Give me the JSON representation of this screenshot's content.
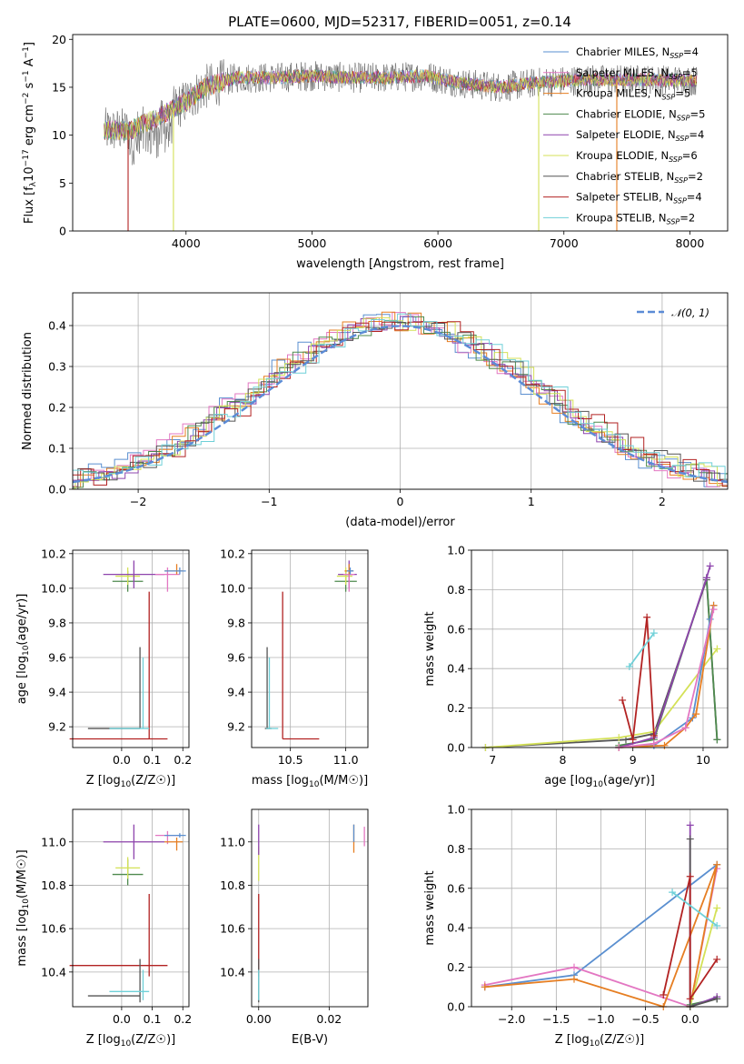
{
  "title": "PLATE=0600, MJD=52317, FIBERID=0051, z=0.14",
  "colors": {
    "ch_miles": "#5a8fd0",
    "sa_miles": "#e377c2",
    "kr_miles": "#e67e22",
    "ch_elodie": "#4e8a4e",
    "sa_elodie": "#8e44ad",
    "kr_elodie": "#d4e157",
    "ch_stelib": "#555555",
    "sa_stelib": "#b22222",
    "kr_stelib": "#6fd0d8",
    "normal": "#5b8bd6",
    "grid": "#b0b0b0"
  },
  "chart_data": [
    {
      "id": "spectrum",
      "type": "line",
      "xlabel": "wavelength [Angstrom, rest frame]",
      "ylabel": "Flux [f_λ10^-17 erg cm^-2 s^-1 A^-1]",
      "xlim": [
        3100,
        8300
      ],
      "ylim": [
        0,
        20.5
      ],
      "xticks": [
        4000,
        5000,
        6000,
        7000,
        8000
      ],
      "yticks": [
        0,
        5,
        10,
        15,
        20
      ],
      "grid": false,
      "legend_position": "top-right",
      "series": [
        {
          "name": "Chabrier MILES, N_SSP=4",
          "color_key": "ch_miles"
        },
        {
          "name": "Salpeter MILES, N_SSP=5",
          "color_key": "sa_miles"
        },
        {
          "name": "Kroupa MILES, N_SSP=5",
          "color_key": "kr_miles"
        },
        {
          "name": "Chabrier ELODIE, N_SSP=5",
          "color_key": "ch_elodie"
        },
        {
          "name": "Salpeter ELODIE, N_SSP=4",
          "color_key": "sa_elodie"
        },
        {
          "name": "Kroupa ELODIE, N_SSP=6",
          "color_key": "kr_elodie"
        },
        {
          "name": "Chabrier STELIB, N_SSP=2",
          "color_key": "ch_stelib"
        },
        {
          "name": "Salpeter STELIB, N_SSP=4",
          "color_key": "sa_stelib"
        },
        {
          "name": "Kroupa STELIB, N_SSP=2",
          "color_key": "kr_stelib"
        }
      ],
      "continuum": [
        [
          3350,
          10.5
        ],
        [
          3550,
          10.5
        ],
        [
          3800,
          12.0
        ],
        [
          4000,
          13.5
        ],
        [
          4150,
          15.0
        ],
        [
          4400,
          16.0
        ],
        [
          4700,
          16.0
        ],
        [
          5000,
          16.2
        ],
        [
          5300,
          16.0
        ],
        [
          5600,
          16.0
        ],
        [
          5900,
          16.2
        ],
        [
          6200,
          15.4
        ],
        [
          6500,
          15.0
        ],
        [
          6800,
          15.5
        ],
        [
          7200,
          15.8
        ],
        [
          7600,
          15.8
        ],
        [
          8050,
          15.7
        ]
      ],
      "edge_drops": [
        {
          "x": 3540,
          "color_key": "sa_stelib"
        },
        {
          "x": 3900,
          "color_key": "kr_elodie"
        },
        {
          "x": 6800,
          "color_key": "kr_elodie"
        },
        {
          "x": 7420,
          "color_key": "kr_miles"
        }
      ]
    },
    {
      "id": "residuals",
      "type": "histogram",
      "xlabel": "(data-model)/error",
      "ylabel": "Normed distribution",
      "xlim": [
        -2.5,
        2.5
      ],
      "ylim": [
        0,
        0.48
      ],
      "xticks": [
        -2,
        -1,
        0,
        1,
        2
      ],
      "yticks": [
        0.0,
        0.1,
        0.2,
        0.3,
        0.4
      ],
      "grid": true,
      "legend_position": "top-right",
      "legend": [
        "𝒩(0, 1)"
      ],
      "bin_width": 0.1,
      "normal": {
        "mean": 0,
        "sigma": 1
      }
    },
    {
      "id": "age_vs_Z",
      "type": "errorbar",
      "xlabel": "Z [log10(Z/Z☉)]",
      "ylabel": "age  [log10(age/yr)]",
      "xlim": [
        -0.16,
        0.22
      ],
      "ylim": [
        9.08,
        10.22
      ],
      "xticks": [
        0.0,
        0.1,
        0.2
      ],
      "yticks": [
        9.2,
        9.4,
        9.6,
        9.8,
        10.0,
        10.2
      ],
      "grid": true,
      "points": [
        {
          "c": "sa_stelib",
          "x": 0.09,
          "xe": [
            0.26,
            0.06
          ],
          "y": 9.13,
          "ye": [
            0,
            0.85
          ]
        },
        {
          "c": "ch_stelib",
          "x": 0.06,
          "xe": [
            0.17,
            0.0
          ],
          "y": 9.19,
          "ye": [
            0,
            0.47
          ]
        },
        {
          "c": "kr_stelib",
          "x": 0.07,
          "xe": [
            0.11,
            0.02
          ],
          "y": 9.19,
          "ye": [
            0,
            0.41
          ]
        },
        {
          "c": "ch_elodie",
          "x": 0.02,
          "xe": [
            0.05,
            0.05
          ],
          "y": 10.04,
          "ye": [
            0.06,
            0.06
          ]
        },
        {
          "c": "kr_elodie",
          "x": 0.02,
          "xe": [
            0.04,
            0.04
          ],
          "y": 10.07,
          "ye": [
            0.05,
            0.05
          ]
        },
        {
          "c": "sa_elodie",
          "x": 0.04,
          "xe": [
            0.1,
            0.1
          ],
          "y": 10.08,
          "ye": [
            0.08,
            0.08
          ]
        },
        {
          "c": "sa_miles",
          "x": 0.15,
          "xe": [
            0.04,
            0.04
          ],
          "y": 10.08,
          "ye": [
            0.1,
            0.04
          ]
        },
        {
          "c": "kr_miles",
          "x": 0.18,
          "xe": [
            0.04,
            0.02
          ],
          "y": 10.1,
          "ye": [
            0.02,
            0.04
          ]
        },
        {
          "c": "ch_miles",
          "x": 0.19,
          "xe": [
            0.05,
            0.02
          ],
          "y": 10.1,
          "ye": [
            0.02,
            0.02
          ]
        }
      ]
    },
    {
      "id": "age_vs_mass",
      "type": "errorbar",
      "xlabel": "mass [log10(M/M☉)]",
      "ylabel": "",
      "xlim": [
        10.15,
        11.2
      ],
      "ylim": [
        9.08,
        10.22
      ],
      "xticks": [
        10.5,
        11.0
      ],
      "yticks": [
        9.2,
        9.4,
        9.6,
        9.8,
        10.0,
        10.2
      ],
      "grid": true,
      "points": [
        {
          "c": "sa_stelib",
          "x": 10.43,
          "xe": [
            0,
            0.33
          ],
          "y": 9.13,
          "ye": [
            0,
            0.85
          ]
        },
        {
          "c": "ch_stelib",
          "x": 10.29,
          "xe": [
            0.02,
            0.04
          ],
          "y": 9.19,
          "ye": [
            0,
            0.47
          ]
        },
        {
          "c": "kr_stelib",
          "x": 10.31,
          "xe": [
            0.03,
            0.08
          ],
          "y": 9.19,
          "ye": [
            0,
            0.41
          ]
        },
        {
          "c": "ch_elodie",
          "x": 11.0,
          "xe": [
            0.1,
            0.1
          ],
          "y": 10.04,
          "ye": [
            0.06,
            0.06
          ]
        },
        {
          "c": "kr_elodie",
          "x": 11.0,
          "xe": [
            0.08,
            0.06
          ],
          "y": 10.07,
          "ye": [
            0.05,
            0.05
          ]
        },
        {
          "c": "sa_elodie",
          "x": 11.03,
          "xe": [
            0.1,
            0.07
          ],
          "y": 10.08,
          "ye": [
            0.08,
            0.08
          ]
        },
        {
          "c": "sa_miles",
          "x": 11.03,
          "xe": [
            0.05,
            0.05
          ],
          "y": 10.08,
          "ye": [
            0.1,
            0.04
          ]
        },
        {
          "c": "kr_miles",
          "x": 11.03,
          "xe": [
            0.04,
            0.04
          ],
          "y": 10.1,
          "ye": [
            0.02,
            0.04
          ]
        },
        {
          "c": "ch_miles",
          "x": 11.04,
          "xe": [
            0.03,
            0.03
          ],
          "y": 10.1,
          "ye": [
            0.02,
            0.02
          ]
        }
      ]
    },
    {
      "id": "weight_vs_age",
      "type": "line",
      "xlabel": "age  [log10(age/yr)]",
      "ylabel": "mass weight",
      "xlim": [
        6.7,
        10.35
      ],
      "ylim": [
        0,
        1.0
      ],
      "xticks": [
        7,
        8,
        9,
        10
      ],
      "yticks": [
        0.0,
        0.2,
        0.4,
        0.6,
        0.8,
        1.0
      ],
      "grid": true,
      "series": [
        {
          "c": "ch_stelib",
          "x": [
            6.9,
            8.9,
            9.3,
            10.05,
            10.2
          ],
          "y": [
            0.0,
            0.04,
            0.07,
            0.85,
            0.04
          ]
        },
        {
          "c": "kr_elodie",
          "x": [
            6.9,
            8.8,
            9.3,
            10.2
          ],
          "y": [
            0.0,
            0.05,
            0.08,
            0.5
          ]
        },
        {
          "c": "ch_elodie",
          "x": [
            8.8,
            9.3,
            10.05,
            10.2
          ],
          "y": [
            0.01,
            0.04,
            0.86,
            0.04
          ]
        },
        {
          "c": "sa_elodie",
          "x": [
            8.8,
            9.3,
            10.05,
            10.1
          ],
          "y": [
            0.0,
            0.05,
            0.86,
            0.92
          ]
        },
        {
          "c": "ch_miles",
          "x": [
            8.8,
            9.3,
            9.85,
            10.1,
            10.15
          ],
          "y": [
            0.0,
            0.01,
            0.15,
            0.65,
            0.72
          ]
        },
        {
          "c": "kr_miles",
          "x": [
            8.8,
            9.45,
            9.75,
            9.9,
            10.15
          ],
          "y": [
            0.0,
            0.01,
            0.1,
            0.17,
            0.72
          ]
        },
        {
          "c": "sa_miles",
          "x": [
            8.8,
            9.3,
            9.75,
            10.15
          ],
          "y": [
            0.0,
            0.02,
            0.1,
            0.7
          ]
        },
        {
          "c": "sa_stelib",
          "x": [
            8.85,
            9.0,
            9.2,
            9.3
          ],
          "y": [
            0.24,
            0.04,
            0.66,
            0.06
          ]
        },
        {
          "c": "kr_stelib",
          "x": [
            8.95,
            9.3
          ],
          "y": [
            0.41,
            0.58
          ]
        }
      ]
    },
    {
      "id": "mass_vs_Z",
      "type": "errorbar",
      "xlabel": "Z [log10(Z/Z☉)]",
      "ylabel": "mass [log10(M/M☉)]",
      "xlim": [
        -0.16,
        0.22
      ],
      "ylim": [
        10.24,
        11.15
      ],
      "xticks": [
        0.0,
        0.1,
        0.2
      ],
      "yticks": [
        10.4,
        10.6,
        10.8,
        11.0
      ],
      "grid": true,
      "points": [
        {
          "c": "sa_stelib",
          "x": 0.09,
          "xe": [
            0.26,
            0.06
          ],
          "y": 10.43,
          "ye": [
            0.05,
            0.33
          ]
        },
        {
          "c": "ch_stelib",
          "x": 0.06,
          "xe": [
            0.17,
            0.0
          ],
          "y": 10.29,
          "ye": [
            0.03,
            0.17
          ]
        },
        {
          "c": "kr_stelib",
          "x": 0.07,
          "xe": [
            0.11,
            0.02
          ],
          "y": 10.31,
          "ye": [
            0.04,
            0.1
          ]
        },
        {
          "c": "ch_elodie",
          "x": 0.02,
          "xe": [
            0.05,
            0.05
          ],
          "y": 10.85,
          "ye": [
            0.05,
            0.07
          ]
        },
        {
          "c": "kr_elodie",
          "x": 0.02,
          "xe": [
            0.04,
            0.04
          ],
          "y": 10.88,
          "ye": [
            0.05,
            0.05
          ]
        },
        {
          "c": "sa_elodie",
          "x": 0.04,
          "xe": [
            0.1,
            0.1
          ],
          "y": 11.0,
          "ye": [
            0.08,
            0.08
          ]
        },
        {
          "c": "sa_miles",
          "x": 0.15,
          "xe": [
            0.04,
            0.04
          ],
          "y": 11.03,
          "ye": [
            0.04,
            0.02
          ]
        },
        {
          "c": "kr_miles",
          "x": 0.18,
          "xe": [
            0.04,
            0.02
          ],
          "y": 11.0,
          "ye": [
            0.04,
            0.02
          ]
        },
        {
          "c": "ch_miles",
          "x": 0.19,
          "xe": [
            0.05,
            0.02
          ],
          "y": 11.03,
          "ye": [
            0.01,
            0.01
          ]
        }
      ]
    },
    {
      "id": "mass_vs_ebv",
      "type": "errorbar",
      "xlabel": "E(B-V)",
      "ylabel": "",
      "xlim": [
        -0.002,
        0.031
      ],
      "ylim": [
        10.24,
        11.15
      ],
      "xticks": [
        0.0,
        0.02
      ],
      "yticks": [
        10.4,
        10.6,
        10.8,
        11.0
      ],
      "grid": true,
      "points": [
        {
          "c": "sa_stelib",
          "x": 0.0,
          "xe": [
            0,
            0
          ],
          "y": 10.43,
          "ye": [
            0.05,
            0.33
          ]
        },
        {
          "c": "ch_stelib",
          "x": 0.0,
          "xe": [
            0,
            0
          ],
          "y": 10.29,
          "ye": [
            0.03,
            0.17
          ]
        },
        {
          "c": "kr_stelib",
          "x": 0.0,
          "xe": [
            0,
            0
          ],
          "y": 10.31,
          "ye": [
            0.04,
            0.1
          ]
        },
        {
          "c": "kr_elodie",
          "x": 0.0,
          "xe": [
            0,
            0
          ],
          "y": 10.88,
          "ye": [
            0.06,
            0.1
          ]
        },
        {
          "c": "sa_elodie",
          "x": 0.0,
          "xe": [
            0,
            0
          ],
          "y": 11.0,
          "ye": [
            0.06,
            0.08
          ]
        },
        {
          "c": "kr_miles",
          "x": 0.027,
          "xe": [
            0,
            0
          ],
          "y": 11.0,
          "ye": [
            0.05,
            0.08
          ]
        },
        {
          "c": "ch_miles",
          "x": 0.027,
          "xe": [
            0,
            0
          ],
          "y": 11.03,
          "ye": [
            0.03,
            0.05
          ]
        },
        {
          "c": "sa_miles",
          "x": 0.03,
          "xe": [
            0,
            0
          ],
          "y": 11.03,
          "ye": [
            0.05,
            0.04
          ]
        }
      ]
    },
    {
      "id": "weight_vs_Z",
      "type": "line",
      "xlabel": "Z [log10(Z/Z☉)]",
      "ylabel": "mass weight",
      "xlim": [
        -2.45,
        0.42
      ],
      "ylim": [
        0,
        1.0
      ],
      "xticks": [
        -2.0,
        -1.5,
        -1.0,
        -0.5,
        0.0
      ],
      "yticks": [
        0.0,
        0.2,
        0.4,
        0.6,
        0.8,
        1.0
      ],
      "grid": true,
      "series": [
        {
          "c": "ch_miles",
          "x": [
            -2.3,
            -1.3,
            0.3
          ],
          "y": [
            0.1,
            0.16,
            0.72
          ]
        },
        {
          "c": "sa_miles",
          "x": [
            -2.3,
            -1.3,
            0.0,
            0.3
          ],
          "y": [
            0.11,
            0.2,
            0.0,
            0.7
          ]
        },
        {
          "c": "kr_miles",
          "x": [
            -2.3,
            -1.3,
            -0.3,
            0.3,
            0.0
          ],
          "y": [
            0.1,
            0.14,
            0.0,
            0.72,
            0.0
          ]
        },
        {
          "c": "ch_elodie",
          "x": [
            0.0,
            0.3
          ],
          "y": [
            0.01,
            0.04
          ]
        },
        {
          "c": "sa_elodie",
          "x": [
            0.0,
            0.0,
            0.3
          ],
          "y": [
            0.92,
            0.0,
            0.05
          ]
        },
        {
          "c": "kr_elodie",
          "x": [
            0.0,
            0.3
          ],
          "y": [
            0.0,
            0.5
          ]
        },
        {
          "c": "ch_stelib",
          "x": [
            0.0,
            0.0,
            0.3
          ],
          "y": [
            0.85,
            0.0,
            0.04
          ]
        },
        {
          "c": "sa_stelib",
          "x": [
            -0.3,
            0.0,
            0.0,
            0.3
          ],
          "y": [
            0.06,
            0.66,
            0.04,
            0.24
          ]
        },
        {
          "c": "kr_stelib",
          "x": [
            -0.2,
            0.3
          ],
          "y": [
            0.58,
            0.41
          ]
        }
      ]
    }
  ]
}
